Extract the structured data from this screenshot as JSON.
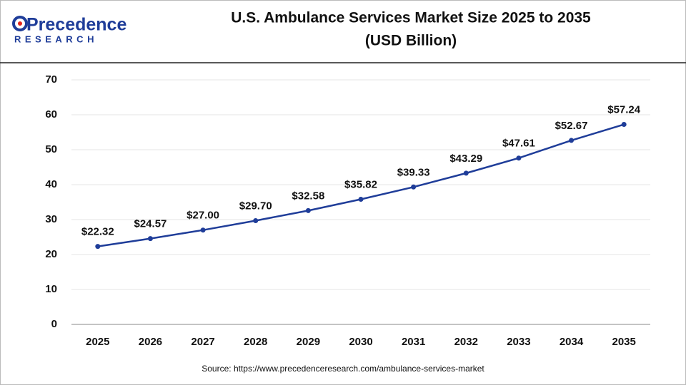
{
  "logo": {
    "name": "Precedence",
    "tagline": "RESEARCH"
  },
  "chart_data": {
    "type": "line",
    "title": [
      "U.S. Ambulance Services Market Size 2025 to 2035",
      "(USD Billion)"
    ],
    "categories": [
      "2025",
      "2026",
      "2027",
      "2028",
      "2029",
      "2030",
      "2031",
      "2032",
      "2033",
      "2034",
      "2035"
    ],
    "series": [
      {
        "color": "#1f3d99",
        "values": [
          22.32,
          24.57,
          27.0,
          29.7,
          32.58,
          35.82,
          39.33,
          43.29,
          47.61,
          52.67,
          57.24
        ],
        "value_labels": [
          "$22.32",
          "$24.57",
          "$27.00",
          "$29.70",
          "$32.58",
          "$35.82",
          "$39.33",
          "$43.29",
          "$47.61",
          "$52.67",
          "$57.24"
        ]
      }
    ],
    "ylim": [
      0,
      70
    ],
    "yticks": [
      0,
      10,
      20,
      30,
      40,
      50,
      60,
      70
    ],
    "grid": true,
    "source": "Source: https://www.precedenceresearch.com/ambulance-services-market"
  }
}
